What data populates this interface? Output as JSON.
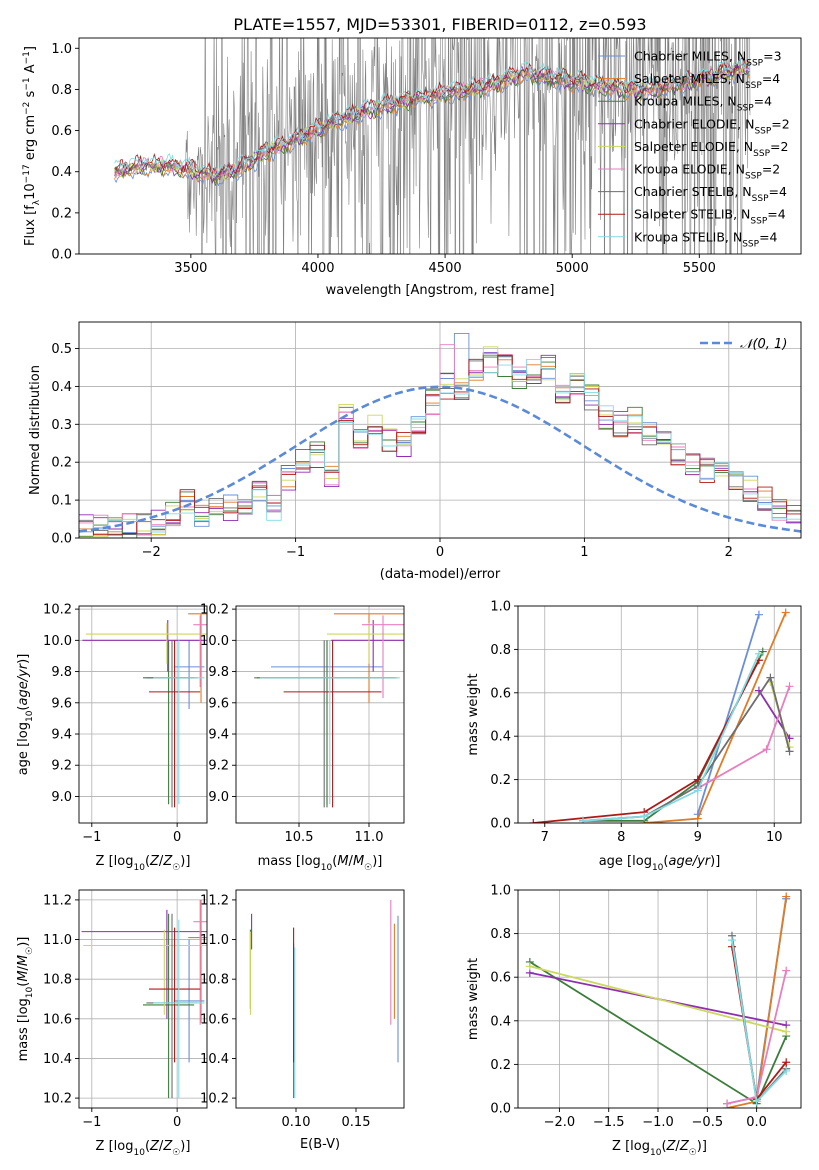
{
  "title": "PLATE=1557, MJD=53301, FIBERID=0112, z=0.593",
  "colors": [
    "#6a8fd8",
    "#e07b27",
    "#3c7d3c",
    "#8f2fb0",
    "#ccd85e",
    "#e77fbf",
    "#6e6e6e",
    "#b01818",
    "#80dbe3"
  ],
  "chart_data": [
    {
      "id": "spectrum",
      "type": "line",
      "xlabel": "wavelength [Angstrom, rest frame]",
      "ylabel": "Flux [f_λ 10^-17 erg cm^-2 s^-1 A^-1]",
      "xlim": [
        3060,
        5900
      ],
      "ylim": [
        0,
        1.05
      ],
      "xticks": [
        3500,
        4000,
        4500,
        5000,
        5500
      ],
      "yticks": [
        0.0,
        0.2,
        0.4,
        0.6,
        0.8,
        1.0
      ],
      "grid": false,
      "legend_position": "top-right",
      "data_color": "#808080",
      "data_trend": {
        "x": [
          3200,
          3300,
          3400,
          3500,
          3600,
          3700,
          3800,
          3900,
          4000,
          4100,
          4200,
          4300,
          4400,
          4500,
          4600,
          4700,
          4800,
          4900,
          5000,
          5100,
          5200,
          5300,
          5400,
          5500,
          5600,
          5700
        ],
        "y": [
          0.4,
          0.43,
          0.43,
          0.41,
          0.38,
          0.42,
          0.5,
          0.55,
          0.61,
          0.66,
          0.7,
          0.73,
          0.76,
          0.78,
          0.8,
          0.83,
          0.88,
          0.86,
          0.84,
          0.82,
          0.8,
          0.8,
          0.82,
          0.85,
          0.88,
          0.91
        ]
      },
      "series": [
        {
          "name": "Chabrier MILES, N_SSP=3",
          "color": "#6a8fd8"
        },
        {
          "name": "Salpeter MILES, N_SSP=4",
          "color": "#e07b27"
        },
        {
          "name": "Kroupa MILES, N_SSP=4",
          "color": "#3c7d3c"
        },
        {
          "name": "Chabrier ELODIE, N_SSP=2",
          "color": "#8f2fb0"
        },
        {
          "name": "Salpeter ELODIE, N_SSP=2",
          "color": "#ccd85e"
        },
        {
          "name": "Kroupa ELODIE, N_SSP=2",
          "color": "#e77fbf"
        },
        {
          "name": "Chabrier STELIB, N_SSP=4",
          "color": "#6e6e6e"
        },
        {
          "name": "Salpeter STELIB, N_SSP=4",
          "color": "#b01818"
        },
        {
          "name": "Kroupa STELIB, N_SSP=4",
          "color": "#80dbe3"
        }
      ]
    },
    {
      "id": "residuals",
      "type": "line",
      "xlabel": "(data-model)/error",
      "ylabel": "Normed distribution",
      "xlim": [
        -2.5,
        2.5
      ],
      "ylim": [
        0,
        0.57
      ],
      "xticks": [
        -2,
        -1,
        0,
        1,
        2
      ],
      "yticks": [
        0.0,
        0.1,
        0.2,
        0.3,
        0.4,
        0.5
      ],
      "grid": true,
      "legend_position": "top-right",
      "gaussian": {
        "name": "𝒩(0, 1)",
        "mean": 0,
        "sigma": 1,
        "color": "#5b8bd6"
      },
      "bin_edges_start": -2.5,
      "bin_width": 0.1,
      "base_histogram": [
        0.03,
        0.03,
        0.02,
        0.03,
        0.04,
        0.04,
        0.06,
        0.1,
        0.06,
        0.07,
        0.08,
        0.09,
        0.12,
        0.08,
        0.16,
        0.2,
        0.22,
        0.17,
        0.33,
        0.27,
        0.3,
        0.26,
        0.25,
        0.31,
        0.36,
        0.4,
        0.39,
        0.45,
        0.47,
        0.46,
        0.42,
        0.44,
        0.45,
        0.39,
        0.4,
        0.37,
        0.32,
        0.3,
        0.31,
        0.27,
        0.25,
        0.22,
        0.2,
        0.18,
        0.17,
        0.14,
        0.13,
        0.1,
        0.08,
        0.07
      ]
    },
    {
      "id": "age-vs-Z",
      "type": "scatter",
      "xlabel": "Z [log10(Z/Z☉)]",
      "ylabel": "age [log10(age/yr)]",
      "xlim": [
        -1.15,
        0.35
      ],
      "ylim": [
        8.83,
        10.22
      ],
      "xticks": [
        -1,
        0
      ],
      "yticks": [
        9.0,
        9.2,
        9.4,
        9.6,
        9.8,
        10.0,
        10.2
      ],
      "grid": true,
      "points": [
        {
          "x": 0.14,
          "y": 9.83,
          "xerr": 0.18,
          "ylo": 9.56,
          "yhi": 10.0,
          "color": "#6a8fd8"
        },
        {
          "x": 0.28,
          "y": 10.17,
          "xerr": 0.15,
          "ylo": 9.6,
          "yhi": 10.17,
          "color": "#e07b27"
        },
        {
          "x": -0.1,
          "y": 9.76,
          "xerr": 0.3,
          "ylo": 8.95,
          "yhi": 10.0,
          "color": "#3c7d3c"
        },
        {
          "x": -0.11,
          "y": 10.0,
          "xerr": 1.0,
          "ylo": 9.8,
          "yhi": 10.13,
          "color": "#8f2fb0"
        },
        {
          "x": -0.12,
          "y": 10.04,
          "xerr": 0.95,
          "ylo": 9.85,
          "yhi": 10.11,
          "color": "#ccd85e"
        },
        {
          "x": 0.27,
          "y": 10.1,
          "xerr": 0.08,
          "ylo": 9.7,
          "yhi": 10.16,
          "color": "#e77fbf"
        },
        {
          "x": -0.06,
          "y": 9.76,
          "xerr": 0.3,
          "ylo": 8.93,
          "yhi": 10.0,
          "color": "#6e6e6e"
        },
        {
          "x": -0.03,
          "y": 9.67,
          "xerr": 0.3,
          "ylo": 8.93,
          "yhi": 10.0,
          "color": "#b01818"
        },
        {
          "x": 0.02,
          "y": 9.76,
          "xerr": 0.3,
          "ylo": 8.95,
          "yhi": 10.0,
          "color": "#80dbe3"
        }
      ]
    },
    {
      "id": "age-vs-mass",
      "type": "scatter",
      "xlabel": "mass [log10(M/M☉)]",
      "ylabel": "",
      "xlim": [
        10.05,
        11.25
      ],
      "ylim": [
        8.83,
        10.22
      ],
      "xticks": [
        10.5,
        11.0
      ],
      "yticks": [
        9.0,
        9.2,
        9.4,
        9.6,
        9.8,
        10.0,
        10.2
      ],
      "grid": true,
      "points": [
        {
          "x": 10.7,
          "y": 9.83,
          "xerr": 0.4,
          "ylo": 8.95,
          "yhi": 10.0,
          "color": "#6a8fd8"
        },
        {
          "x": 11.0,
          "y": 10.17,
          "xerr": 0.25,
          "ylo": 9.6,
          "yhi": 10.17,
          "color": "#e07b27"
        },
        {
          "x": 10.7,
          "y": 9.76,
          "xerr": 0.5,
          "ylo": 8.93,
          "yhi": 10.0,
          "color": "#3c7d3c"
        },
        {
          "x": 11.03,
          "y": 10.0,
          "xerr": 0.3,
          "ylo": 9.8,
          "yhi": 10.13,
          "color": "#8f2fb0"
        },
        {
          "x": 11.0,
          "y": 10.04,
          "xerr": 0.3,
          "ylo": 9.85,
          "yhi": 10.11,
          "color": "#ccd85e"
        },
        {
          "x": 11.1,
          "y": 10.1,
          "xerr": 0.15,
          "ylo": 9.63,
          "yhi": 10.16,
          "color": "#e77fbf"
        },
        {
          "x": 10.68,
          "y": 9.76,
          "xerr": 0.5,
          "ylo": 8.93,
          "yhi": 10.0,
          "color": "#6e6e6e"
        },
        {
          "x": 10.74,
          "y": 9.67,
          "xerr": 0.35,
          "ylo": 8.93,
          "yhi": 10.0,
          "color": "#b01818"
        },
        {
          "x": 10.72,
          "y": 9.76,
          "xerr": 0.5,
          "ylo": 8.95,
          "yhi": 10.0,
          "color": "#80dbe3"
        }
      ]
    },
    {
      "id": "massweight-vs-age",
      "type": "line",
      "xlabel": "age [log10(age/yr)]",
      "ylabel": "mass weight",
      "xlim": [
        6.65,
        10.35
      ],
      "ylim": [
        0,
        1.0
      ],
      "xticks": [
        7,
        8,
        9,
        10
      ],
      "yticks": [
        0.0,
        0.2,
        0.4,
        0.6,
        0.8,
        1.0
      ],
      "grid": true,
      "series": [
        {
          "color": "#6a8fd8",
          "x": [
            9.0,
            9.8
          ],
          "y": [
            0.04,
            0.96
          ]
        },
        {
          "color": "#e07b27",
          "x": [
            8.3,
            9.0,
            10.15
          ],
          "y": [
            0.0,
            0.02,
            0.97
          ]
        },
        {
          "color": "#3c7d3c",
          "x": [
            7.5,
            8.3,
            9.0,
            9.85
          ],
          "y": [
            0.01,
            0.01,
            0.19,
            0.79
          ]
        },
        {
          "color": "#8f2fb0",
          "x": [
            9.8,
            10.2
          ],
          "y": [
            0.61,
            0.39
          ]
        },
        {
          "color": "#ccd85e",
          "x": [
            9.95,
            10.2
          ],
          "y": [
            0.65,
            0.35
          ]
        },
        {
          "color": "#e77fbf",
          "x": [
            9.0,
            9.9,
            10.2
          ],
          "y": [
            0.16,
            0.34,
            0.63
          ]
        },
        {
          "color": "#6e6e6e",
          "x": [
            7.5,
            8.3,
            9.0,
            9.95,
            10.2
          ],
          "y": [
            0.01,
            0.03,
            0.17,
            0.67,
            0.33
          ]
        },
        {
          "color": "#b01818",
          "x": [
            6.85,
            8.3,
            9.0,
            9.8
          ],
          "y": [
            0.0,
            0.05,
            0.2,
            0.75
          ]
        },
        {
          "color": "#80dbe3",
          "x": [
            7.5,
            8.3,
            9.0,
            9.8
          ],
          "y": [
            0.01,
            0.03,
            0.15,
            0.78
          ]
        }
      ]
    },
    {
      "id": "mass-vs-Z",
      "type": "scatter",
      "xlabel": "Z [log10(Z/Z☉)]",
      "ylabel": "mass [log10(M/M☉)]",
      "xlim": [
        -1.15,
        0.35
      ],
      "ylim": [
        10.15,
        11.25
      ],
      "xticks": [
        -1,
        0
      ],
      "yticks": [
        10.2,
        10.4,
        10.6,
        10.8,
        11.0,
        11.2
      ],
      "grid": true,
      "points": [
        {
          "x": 0.14,
          "y": 10.69,
          "xerr": 0.18,
          "ylo": 10.38,
          "yhi": 11.0,
          "color": "#6a8fd8"
        },
        {
          "x": 0.28,
          "y": 11.01,
          "xerr": 0.15,
          "ylo": 10.58,
          "yhi": 11.2,
          "color": "#e07b27"
        },
        {
          "x": -0.1,
          "y": 10.67,
          "xerr": 0.3,
          "ylo": 10.2,
          "yhi": 11.13,
          "color": "#3c7d3c"
        },
        {
          "x": -0.12,
          "y": 11.04,
          "xerr": 1.0,
          "ylo": 10.6,
          "yhi": 11.15,
          "color": "#8f2fb0"
        },
        {
          "x": -0.15,
          "y": 10.97,
          "xerr": 0.95,
          "ylo": 10.62,
          "yhi": 11.05,
          "color": "#ccd85e"
        },
        {
          "x": 0.27,
          "y": 11.09,
          "xerr": 0.08,
          "ylo": 10.57,
          "yhi": 11.2,
          "color": "#e77fbf"
        },
        {
          "x": -0.06,
          "y": 10.68,
          "xerr": 0.3,
          "ylo": 10.2,
          "yhi": 11.13,
          "color": "#6e6e6e"
        },
        {
          "x": -0.03,
          "y": 10.75,
          "xerr": 0.3,
          "ylo": 10.38,
          "yhi": 11.06,
          "color": "#b01818"
        },
        {
          "x": 0.02,
          "y": 10.68,
          "xerr": 0.3,
          "ylo": 10.2,
          "yhi": 11.1,
          "color": "#80dbe3"
        }
      ]
    },
    {
      "id": "mass-vs-EBV",
      "type": "scatter",
      "xlabel": "E(B-V)",
      "ylabel": "",
      "xlim": [
        0.05,
        0.19
      ],
      "ylim": [
        10.15,
        11.25
      ],
      "xticks": [
        0.1,
        0.15
      ],
      "yticks": [
        10.2,
        10.4,
        10.6,
        10.8,
        11.0,
        11.2
      ],
      "grid": false,
      "points": [
        {
          "x": 0.185,
          "ylo": 10.38,
          "yhi": 11.12,
          "color": "#6a8fd8"
        },
        {
          "x": 0.182,
          "ylo": 10.6,
          "yhi": 11.08,
          "color": "#e07b27"
        },
        {
          "x": 0.062,
          "ylo": 10.65,
          "yhi": 11.05,
          "color": "#3c7d3c"
        },
        {
          "x": 0.063,
          "ylo": 10.95,
          "yhi": 11.13,
          "color": "#8f2fb0"
        },
        {
          "x": 0.062,
          "ylo": 10.62,
          "yhi": 11.04,
          "color": "#ccd85e"
        },
        {
          "x": 0.179,
          "ylo": 10.57,
          "yhi": 11.2,
          "color": "#e77fbf"
        },
        {
          "x": 0.098,
          "ylo": 10.2,
          "yhi": 10.98,
          "color": "#6e6e6e"
        },
        {
          "x": 0.098,
          "ylo": 10.38,
          "yhi": 11.06,
          "color": "#b01818"
        },
        {
          "x": 0.099,
          "ylo": 10.2,
          "yhi": 10.96,
          "color": "#80dbe3"
        }
      ]
    },
    {
      "id": "massweight-vs-Z",
      "type": "line",
      "xlabel": "Z [log10(Z/Z☉)]",
      "ylabel": "mass weight",
      "xlim": [
        -2.42,
        0.45
      ],
      "ylim": [
        0,
        1.0
      ],
      "xticks": [
        -2.0,
        -1.5,
        -1.0,
        -0.5,
        0.0
      ],
      "yticks": [
        0.0,
        0.2,
        0.4,
        0.6,
        0.8,
        1.0
      ],
      "grid": true,
      "series": [
        {
          "color": "#6a8fd8",
          "x": [
            -0.3,
            0.0,
            0.3
          ],
          "y": [
            0.02,
            0.05,
            0.96
          ]
        },
        {
          "color": "#e07b27",
          "x": [
            -0.3,
            0.0,
            0.3
          ],
          "y": [
            0.0,
            0.03,
            0.97
          ]
        },
        {
          "color": "#3c7d3c",
          "x": [
            -2.3,
            0.0,
            0.3
          ],
          "y": [
            0.67,
            0.02,
            0.33
          ]
        },
        {
          "color": "#8f2fb0",
          "x": [
            -2.3,
            0.3
          ],
          "y": [
            0.62,
            0.38
          ]
        },
        {
          "color": "#ccd85e",
          "x": [
            -2.3,
            0.3
          ],
          "y": [
            0.65,
            0.35
          ]
        },
        {
          "color": "#e77fbf",
          "x": [
            -0.3,
            0.0,
            0.3
          ],
          "y": [
            0.02,
            0.05,
            0.63
          ]
        },
        {
          "color": "#6e6e6e",
          "x": [
            -0.25,
            0.0,
            0.3
          ],
          "y": [
            0.79,
            0.03,
            0.18
          ]
        },
        {
          "color": "#b01818",
          "x": [
            -0.25,
            0.0,
            0.3
          ],
          "y": [
            0.74,
            0.04,
            0.21
          ]
        },
        {
          "color": "#80dbe3",
          "x": [
            -0.25,
            0.0,
            0.3
          ],
          "y": [
            0.77,
            0.03,
            0.17
          ]
        }
      ]
    }
  ]
}
